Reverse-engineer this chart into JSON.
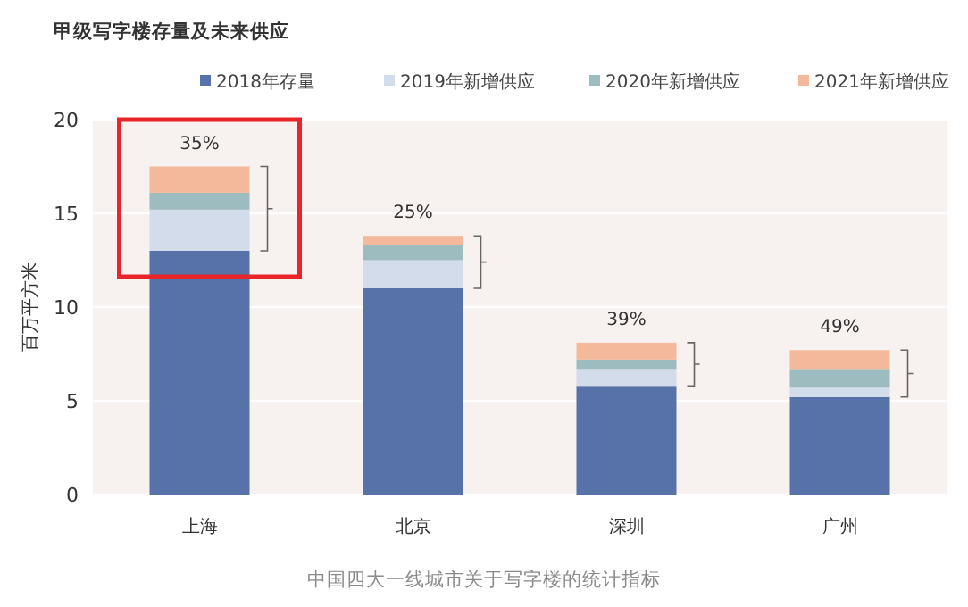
{
  "chart_data": {
    "type": "bar",
    "title": "甲级写字楼存量及未来供应",
    "ylabel": "百万平方米",
    "categories": [
      "上海",
      "北京",
      "深圳",
      "广州"
    ],
    "stacked": true,
    "series": [
      {
        "name": "2018年存量",
        "color": "#5672a8",
        "values": [
          13,
          11,
          5.8,
          5.2
        ]
      },
      {
        "name": "2019年新增供应",
        "color": "#d3dcea",
        "values": [
          2.2,
          1.5,
          0.9,
          0.5
        ]
      },
      {
        "name": "2020年新增供应",
        "color": "#9cbcbf",
        "values": [
          0.9,
          0.8,
          0.5,
          1.0
        ]
      },
      {
        "name": "2021年新增供应",
        "color": "#f3b99a",
        "values": [
          1.4,
          0.5,
          0.9,
          1.0
        ]
      }
    ],
    "ylim": [
      0,
      20
    ],
    "yticks": [
      0,
      5,
      10,
      15,
      20
    ],
    "grid": "y",
    "legend": "top",
    "annotations": [
      {
        "text": "35%",
        "x": "上海",
        "y": 17.5
      },
      {
        "text": "25%",
        "x": "北京",
        "y": 13.8
      },
      {
        "text": "39%",
        "x": "深圳",
        "y": 8.1
      },
      {
        "text": "49%",
        "x": "广州",
        "y": 7.7
      },
      "中国四大一线城市关于写字楼的统计指标"
    ]
  }
}
